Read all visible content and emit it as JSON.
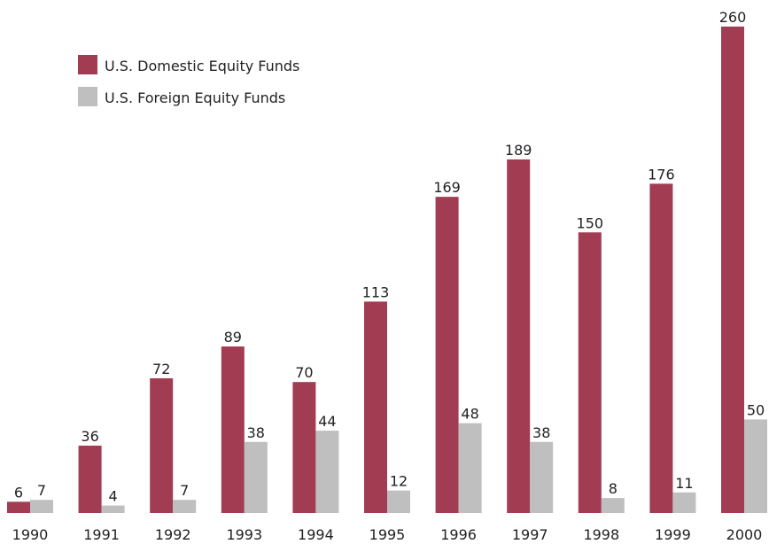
{
  "chart_data": {
    "type": "bar",
    "categories": [
      "1990",
      "1991",
      "1992",
      "1993",
      "1994",
      "1995",
      "1996",
      "1997",
      "1998",
      "1999",
      "2000"
    ],
    "series": [
      {
        "name": "U.S. Domestic Equity Funds",
        "color": "#a13c52",
        "values": [
          6,
          36,
          72,
          89,
          70,
          113,
          169,
          189,
          150,
          176,
          260
        ]
      },
      {
        "name": "U.S. Foreign Equity Funds",
        "color": "#bfbfbf",
        "values": [
          7,
          4,
          7,
          38,
          44,
          12,
          48,
          38,
          8,
          11,
          50
        ]
      }
    ],
    "ylim": [
      0,
      260
    ]
  }
}
